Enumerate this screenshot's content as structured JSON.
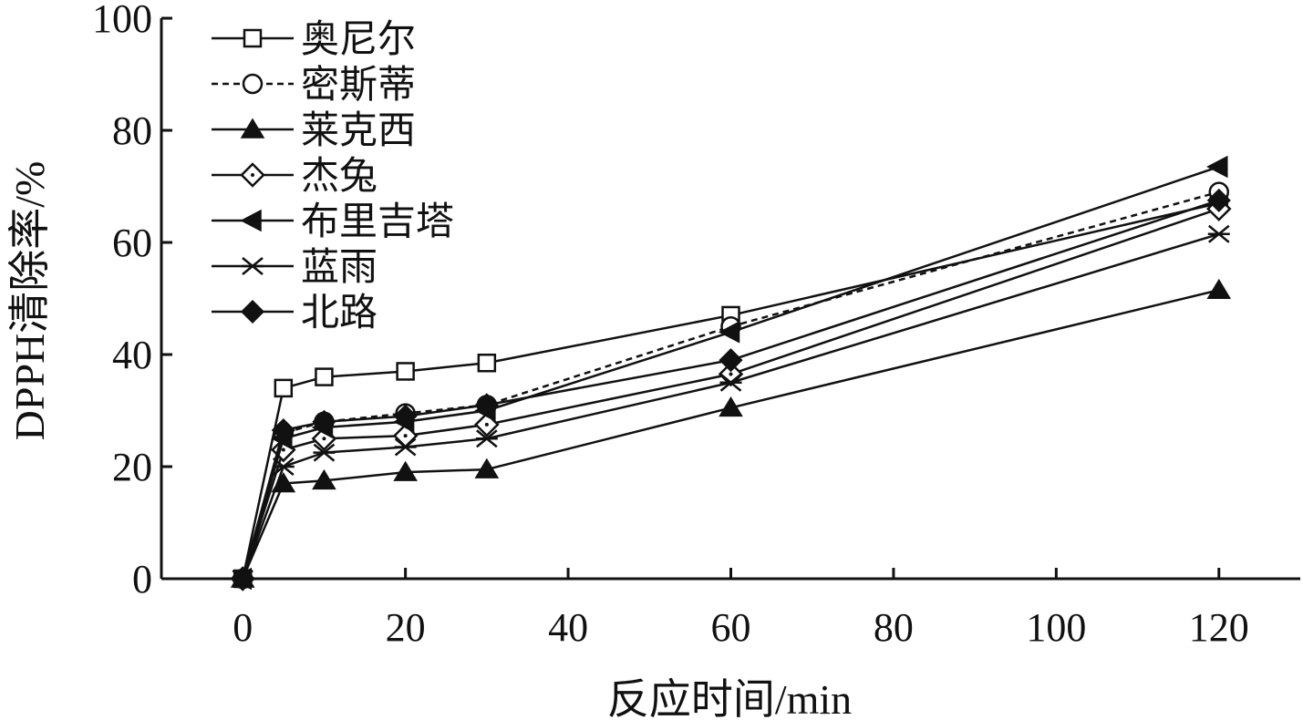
{
  "chart_data": {
    "type": "line",
    "title": "",
    "xlabel": "反应时间/min",
    "ylabel": "DPPH清除率/%",
    "xlim": [
      -10,
      130
    ],
    "ylim": [
      0,
      100
    ],
    "xticks": [
      0,
      20,
      40,
      60,
      80,
      100,
      120
    ],
    "yticks": [
      0,
      20,
      40,
      60,
      80,
      100
    ],
    "grid": false,
    "legend_position": "top-left",
    "x": [
      0,
      5,
      10,
      20,
      30,
      60,
      120
    ],
    "series": [
      {
        "name": "奥尼尔",
        "marker": "square-open",
        "dash": "solid",
        "values": [
          0,
          34,
          36,
          37,
          38.5,
          47,
          67
        ]
      },
      {
        "name": "密斯蒂",
        "marker": "circle-open",
        "dash": "dashed",
        "values": [
          0,
          26,
          28,
          29.5,
          31,
          45,
          69
        ]
      },
      {
        "name": "莱克西",
        "marker": "triangle-filled",
        "dash": "solid",
        "values": [
          0,
          17,
          17.5,
          19,
          19.5,
          30.5,
          51.5
        ]
      },
      {
        "name": "杰兔",
        "marker": "diamond-open",
        "dash": "solid",
        "values": [
          0,
          23,
          25,
          25.5,
          27.5,
          36.5,
          66
        ]
      },
      {
        "name": "布里吉塔",
        "marker": "triangle-left-filled",
        "dash": "solid",
        "values": [
          0,
          25,
          27,
          28,
          30,
          44,
          73.5
        ]
      },
      {
        "name": "蓝雨",
        "marker": "asterisk",
        "dash": "solid",
        "values": [
          0,
          20,
          22.5,
          23.5,
          25,
          35,
          61.5
        ]
      },
      {
        "name": "北路",
        "marker": "diamond-filled",
        "dash": "solid",
        "values": [
          0,
          26.5,
          28,
          29,
          31,
          39,
          67.5
        ]
      }
    ]
  }
}
